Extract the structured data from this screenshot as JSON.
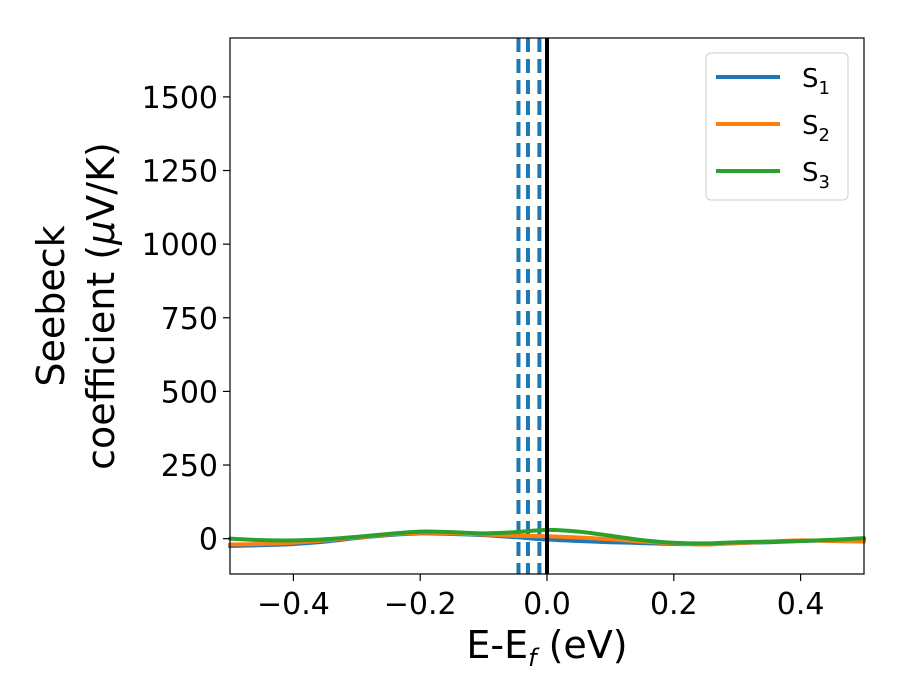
{
  "chart_data": {
    "type": "line",
    "xlabel": "E-E",
    "xlabel_sub": "f",
    "xlabel_suffix": " (eV)",
    "ylabel_line1": "Seebeck",
    "ylabel_line2": "coefficient  (",
    "ylabel_mu": "μ",
    "ylabel_line2_suffix": "V/K)",
    "xlim": [
      -0.5,
      0.5
    ],
    "ylim": [
      -120,
      1700
    ],
    "xticks": [
      -0.4,
      -0.2,
      0.0,
      0.2,
      0.4
    ],
    "xtick_labels": [
      "−0.4",
      "−0.2",
      "0.0",
      "0.2",
      "0.4"
    ],
    "yticks": [
      0,
      250,
      500,
      750,
      1000,
      1250,
      1500
    ],
    "ytick_labels": [
      "0",
      "250",
      "500",
      "750",
      "1000",
      "1250",
      "1500"
    ],
    "grid": false,
    "legend_position": "top-right",
    "x": [
      -0.5,
      -0.45,
      -0.4,
      -0.35,
      -0.3,
      -0.25,
      -0.2,
      -0.15,
      -0.1,
      -0.05,
      0.0,
      0.05,
      0.1,
      0.15,
      0.2,
      0.25,
      0.3,
      0.35,
      0.4,
      0.45,
      0.5
    ],
    "series": [
      {
        "name": "S",
        "sub": "1",
        "color": "#1f77b4",
        "values": [
          -25,
          -22,
          -18,
          -10,
          2,
          12,
          18,
          16,
          12,
          5,
          -3,
          -8,
          -12,
          -15,
          -18,
          -18,
          -15,
          -12,
          -8,
          -5,
          -3
        ]
      },
      {
        "name": "S",
        "sub": "2",
        "color": "#ff7f0e",
        "values": [
          -20,
          -18,
          -14,
          -6,
          4,
          14,
          20,
          18,
          14,
          10,
          8,
          4,
          -2,
          -10,
          -16,
          -20,
          -15,
          -10,
          -6,
          -8,
          -10
        ]
      },
      {
        "name": "S",
        "sub": "3",
        "color": "#2ca02c",
        "values": [
          0,
          -5,
          -6,
          -2,
          6,
          16,
          24,
          22,
          18,
          22,
          30,
          24,
          10,
          -5,
          -14,
          -16,
          -12,
          -10,
          -8,
          -4,
          2
        ]
      }
    ],
    "vlines_dashed": {
      "x": [
        -0.045,
        -0.03,
        -0.012
      ],
      "color": "#1f77b4"
    },
    "vline_solid": {
      "x": 0.0,
      "color": "#000000"
    }
  }
}
